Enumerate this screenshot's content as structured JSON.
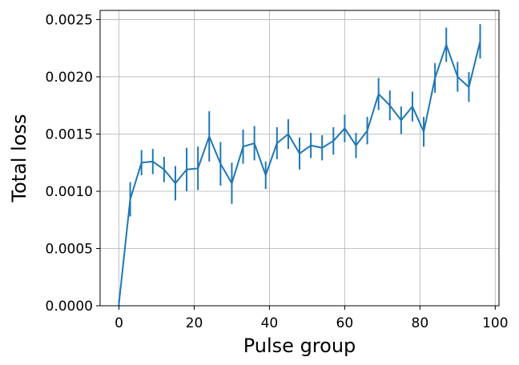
{
  "chart_data": {
    "type": "line",
    "title": "",
    "xlabel": "Pulse group",
    "ylabel": "Total loss",
    "xlim": [
      -5,
      101
    ],
    "ylim": [
      0,
      0.00258
    ],
    "xticks": [
      0,
      20,
      40,
      60,
      80,
      100
    ],
    "xtick_labels": [
      "0",
      "20",
      "40",
      "60",
      "80",
      "100"
    ],
    "yticks": [
      0,
      0.0005,
      0.001,
      0.0015,
      0.002,
      0.0025
    ],
    "ytick_labels": [
      "0.0000",
      "0.0005",
      "0.0010",
      "0.0015",
      "0.0020",
      "0.0025"
    ],
    "grid": true,
    "legend": "none",
    "color": "#1f77b4",
    "series": [
      {
        "x": [
          0,
          3,
          6,
          9,
          12,
          15,
          18,
          21,
          24,
          27,
          30,
          33,
          36,
          39,
          42,
          45,
          48,
          51,
          54,
          57,
          60,
          63,
          66,
          69,
          72,
          75,
          78,
          81,
          84,
          87,
          90,
          93,
          96
        ],
        "values": [
          2e-05,
          0.00093,
          0.00125,
          0.00126,
          0.00119,
          0.00107,
          0.00119,
          0.0012,
          0.00148,
          0.00124,
          0.00107,
          0.00139,
          0.00142,
          0.00114,
          0.00142,
          0.0015,
          0.00133,
          0.0014,
          0.00138,
          0.00144,
          0.00155,
          0.0014,
          0.00153,
          0.00185,
          0.00175,
          0.00162,
          0.00174,
          0.00152,
          0.00199,
          0.00228,
          0.002,
          0.00191,
          0.00231
        ],
        "errors": [
          3e-05,
          0.00015,
          0.00011,
          0.00011,
          0.00011,
          0.00015,
          0.00019,
          0.00019,
          0.00022,
          0.00019,
          0.00018,
          0.00015,
          0.00015,
          0.00012,
          0.00014,
          0.00013,
          0.00014,
          0.00011,
          0.00011,
          0.00012,
          0.00012,
          0.00011,
          0.00012,
          0.00014,
          0.00013,
          0.00012,
          0.00013,
          0.00013,
          0.00013,
          0.00015,
          0.00013,
          0.00013,
          0.00015
        ]
      }
    ]
  }
}
